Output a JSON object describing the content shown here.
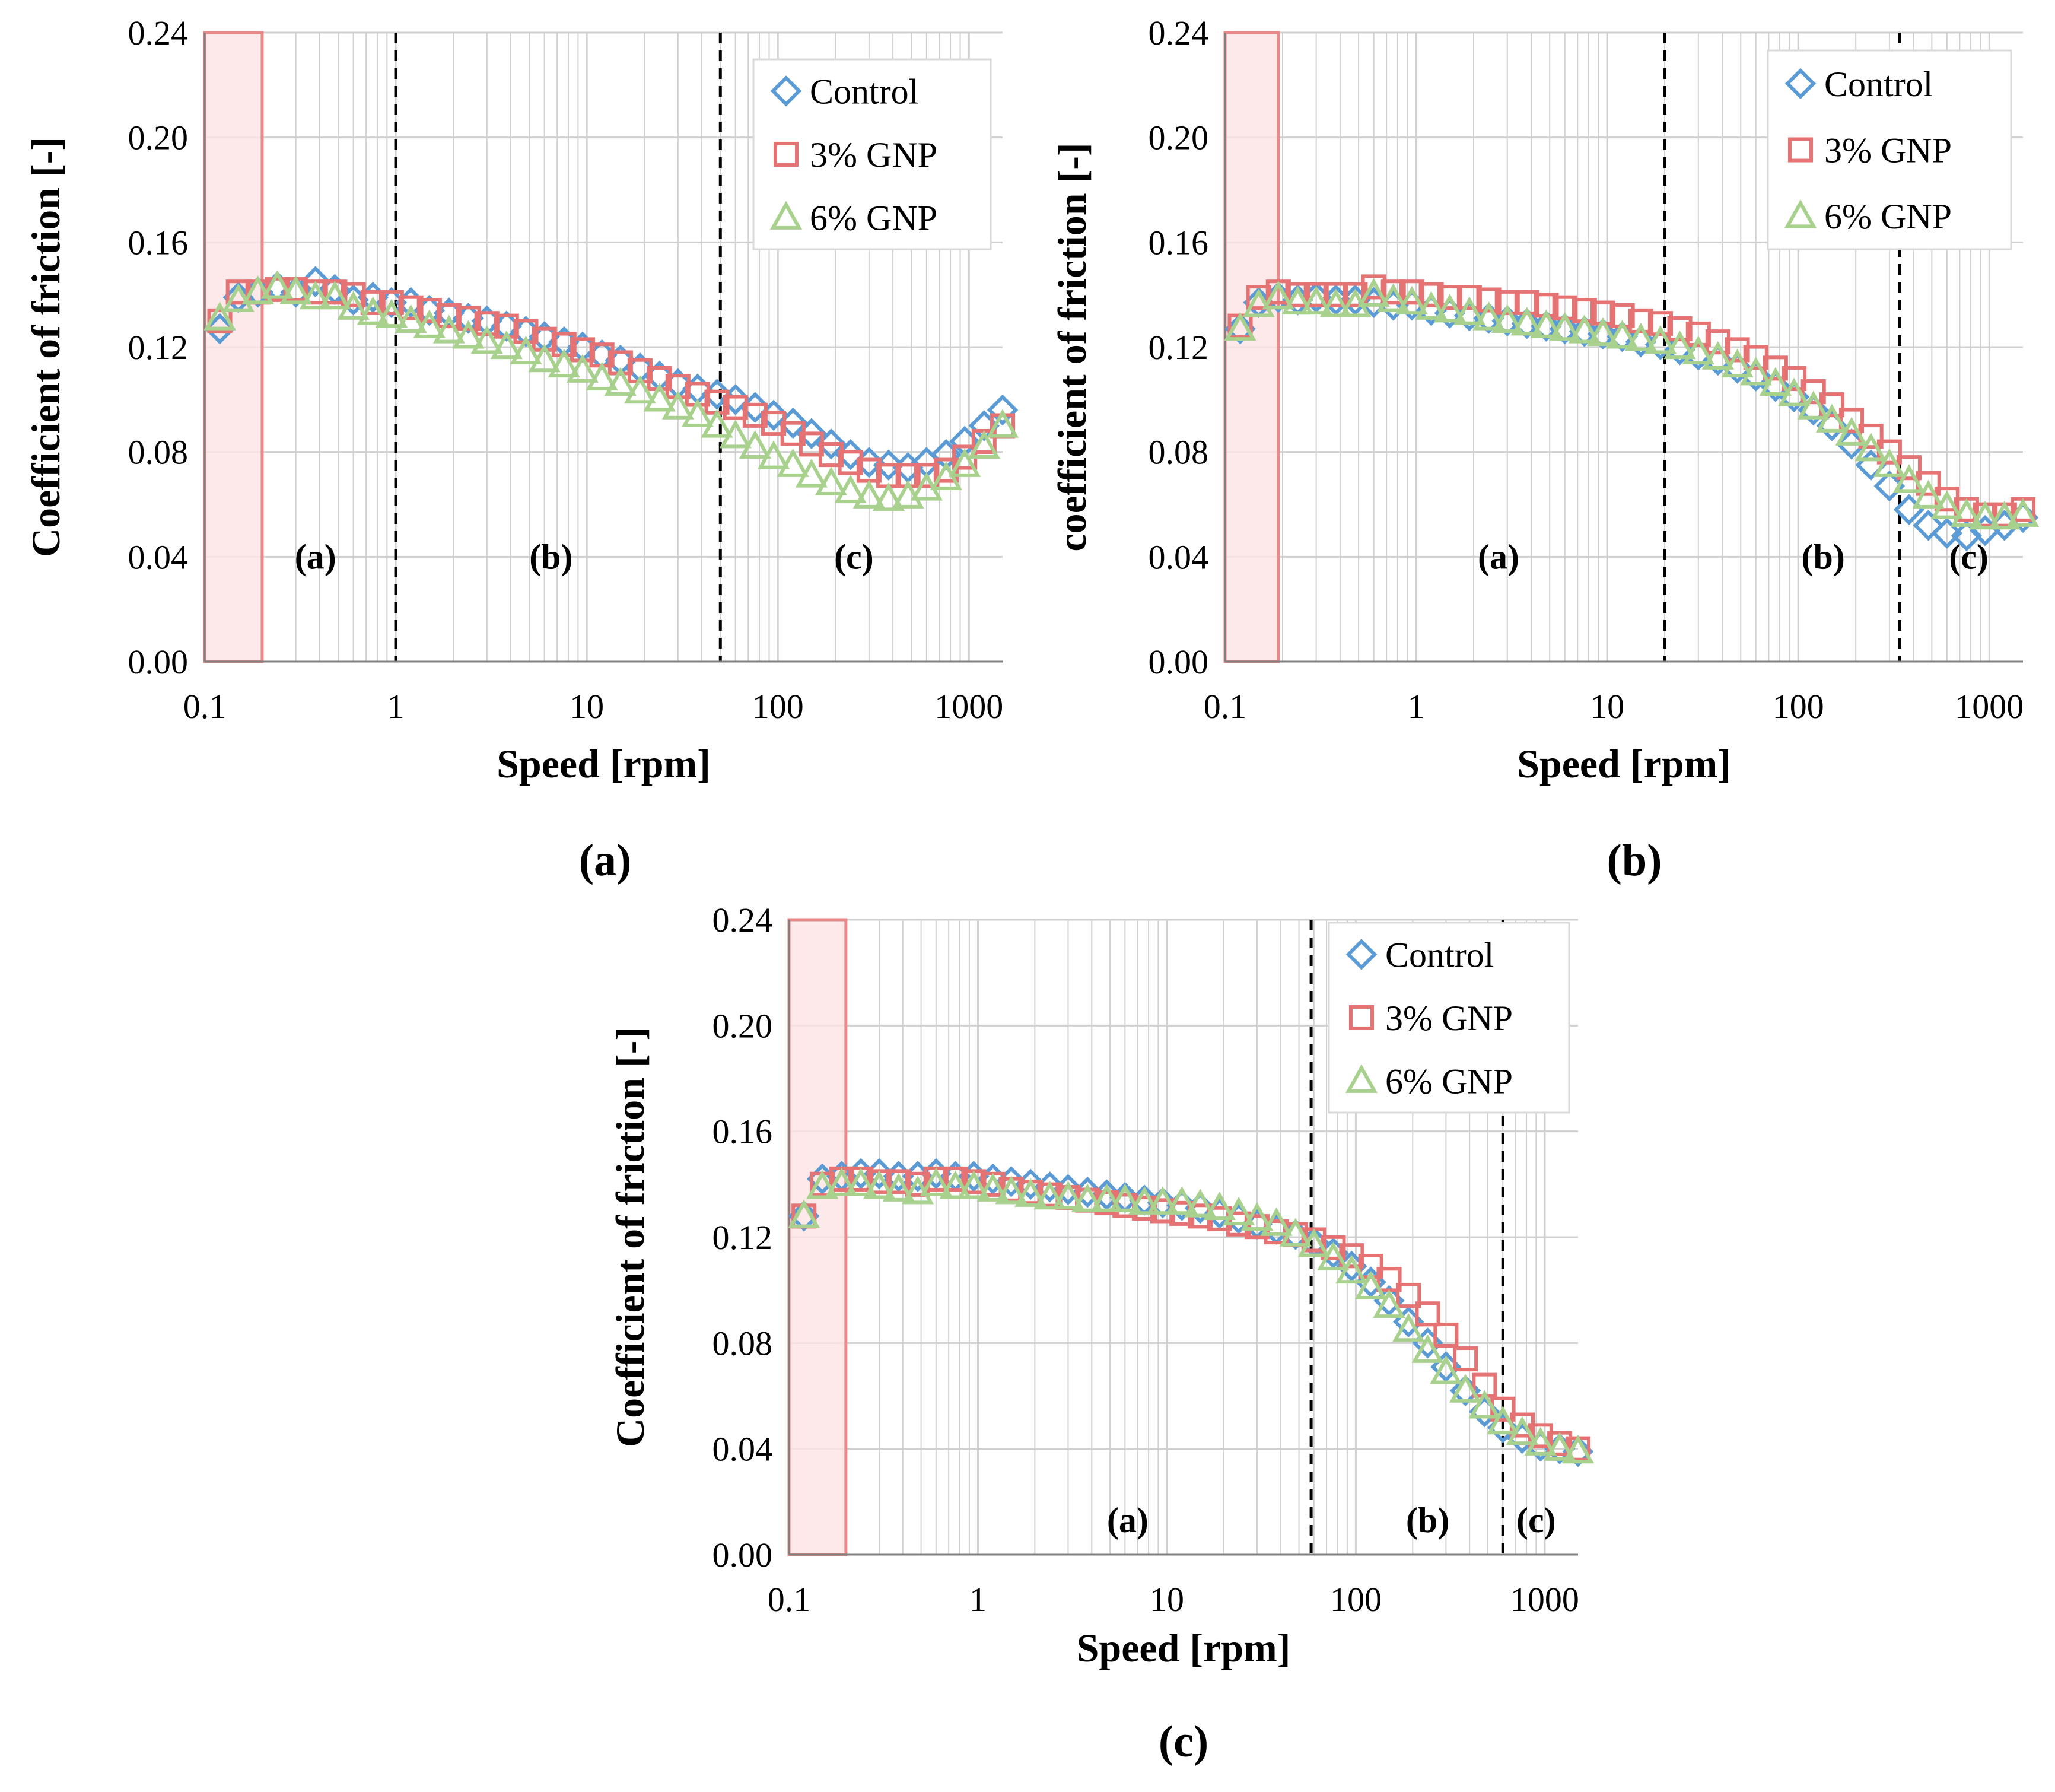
{
  "colors": {
    "control": "#5B9BD5",
    "gnp3": "#E57373",
    "gnp6": "#A9D18E",
    "band_fill": "#FCE4E4",
    "band_stroke": "#E88A8A",
    "grid": "#D0D0D0"
  },
  "legend": [
    "Control",
    "3% GNP",
    "6% GNP"
  ],
  "chart_data": [
    {
      "type": "scatter",
      "caption": "(a)",
      "xlabel": "Speed [rpm]",
      "ylabel": "Coefficient of friction [-]",
      "x_scale": "log",
      "xlim": [
        0.1,
        1500
      ],
      "ylim": [
        0,
        0.24
      ],
      "x_ticks": [
        "0.1",
        "1",
        "10",
        "100",
        "1000"
      ],
      "y_ticks": [
        "0.00",
        "0.04",
        "0.08",
        "0.12",
        "0.16",
        "0.20",
        "0.24"
      ],
      "grid": true,
      "legend_position": "top-right",
      "shaded_band_x": [
        0.1,
        0.2
      ],
      "vlines": [
        1,
        50
      ],
      "region_labels": [
        {
          "text": "(a)",
          "x": 0.38,
          "y": 0.04
        },
        {
          "text": "(b)",
          "x": 6.5,
          "y": 0.04
        },
        {
          "text": "(c)",
          "x": 250,
          "y": 0.04
        }
      ],
      "series": [
        {
          "name": "Control",
          "marker": "diamond",
          "x": [
            0.12,
            0.15,
            0.19,
            0.24,
            0.3,
            0.38,
            0.48,
            0.6,
            0.76,
            0.95,
            1.2,
            1.5,
            1.9,
            2.4,
            3.0,
            3.8,
            4.8,
            6.0,
            7.6,
            9.5,
            12,
            15,
            19,
            24,
            30,
            38,
            48,
            60,
            76,
            95,
            120,
            150,
            190,
            240,
            300,
            380,
            480,
            600,
            760,
            950,
            1200,
            1500
          ],
          "y": [
            0.127,
            0.139,
            0.141,
            0.143,
            0.141,
            0.145,
            0.142,
            0.138,
            0.139,
            0.137,
            0.137,
            0.134,
            0.133,
            0.131,
            0.13,
            0.128,
            0.126,
            0.124,
            0.122,
            0.12,
            0.117,
            0.115,
            0.112,
            0.109,
            0.106,
            0.104,
            0.102,
            0.1,
            0.097,
            0.094,
            0.091,
            0.087,
            0.083,
            0.079,
            0.076,
            0.075,
            0.074,
            0.076,
            0.079,
            0.084,
            0.09,
            0.096
          ]
        },
        {
          "name": "3% GNP",
          "marker": "square",
          "x": [
            0.12,
            0.15,
            0.19,
            0.24,
            0.3,
            0.38,
            0.48,
            0.6,
            0.76,
            0.95,
            1.2,
            1.5,
            1.9,
            2.4,
            3.0,
            3.8,
            4.8,
            6.0,
            7.6,
            9.5,
            12,
            15,
            19,
            24,
            30,
            38,
            48,
            60,
            76,
            95,
            120,
            150,
            190,
            240,
            300,
            380,
            480,
            600,
            760,
            950,
            1200,
            1500
          ],
          "y": [
            0.13,
            0.141,
            0.141,
            0.142,
            0.142,
            0.141,
            0.141,
            0.14,
            0.137,
            0.137,
            0.135,
            0.134,
            0.132,
            0.131,
            0.129,
            0.128,
            0.126,
            0.123,
            0.121,
            0.119,
            0.117,
            0.114,
            0.111,
            0.108,
            0.105,
            0.102,
            0.099,
            0.097,
            0.094,
            0.091,
            0.087,
            0.083,
            0.079,
            0.076,
            0.073,
            0.071,
            0.071,
            0.071,
            0.073,
            0.078,
            0.084,
            0.09
          ]
        },
        {
          "name": "6% GNP",
          "marker": "triangle",
          "x": [
            0.12,
            0.15,
            0.19,
            0.24,
            0.3,
            0.38,
            0.48,
            0.6,
            0.76,
            0.95,
            1.2,
            1.5,
            1.9,
            2.4,
            3.0,
            3.8,
            4.8,
            6.0,
            7.6,
            9.5,
            12,
            15,
            19,
            24,
            30,
            38,
            48,
            60,
            76,
            95,
            120,
            150,
            190,
            240,
            300,
            380,
            480,
            600,
            760,
            950,
            1200,
            1500
          ],
          "y": [
            0.131,
            0.138,
            0.141,
            0.143,
            0.141,
            0.139,
            0.139,
            0.135,
            0.133,
            0.132,
            0.13,
            0.128,
            0.126,
            0.124,
            0.122,
            0.12,
            0.118,
            0.115,
            0.113,
            0.111,
            0.108,
            0.106,
            0.103,
            0.1,
            0.097,
            0.094,
            0.09,
            0.086,
            0.082,
            0.078,
            0.075,
            0.071,
            0.068,
            0.065,
            0.063,
            0.062,
            0.063,
            0.066,
            0.07,
            0.075,
            0.082,
            0.09
          ]
        }
      ]
    },
    {
      "type": "scatter",
      "caption": "(b)",
      "xlabel": "Speed [rpm]",
      "ylabel": "coefficient of friction [-]",
      "x_scale": "log",
      "xlim": [
        0.1,
        1500
      ],
      "ylim": [
        0,
        0.24
      ],
      "x_ticks": [
        "0.1",
        "1",
        "10",
        "100",
        "1000"
      ],
      "y_ticks": [
        "0.00",
        "0.04",
        "0.08",
        "0.12",
        "0.16",
        "0.20",
        "0.24"
      ],
      "grid": true,
      "legend_position": "top-right",
      "shaded_band_x": [
        0.1,
        0.19
      ],
      "vlines": [
        20,
        340
      ],
      "region_labels": [
        {
          "text": "(a)",
          "x": 2.7,
          "y": 0.04
        },
        {
          "text": "(b)",
          "x": 135,
          "y": 0.04
        },
        {
          "text": "(c)",
          "x": 780,
          "y": 0.04
        }
      ],
      "series": [
        {
          "name": "Control",
          "marker": "diamond",
          "x": [
            0.12,
            0.15,
            0.19,
            0.24,
            0.3,
            0.38,
            0.48,
            0.6,
            0.76,
            0.95,
            1.2,
            1.5,
            1.9,
            2.4,
            3.0,
            3.8,
            4.8,
            6.0,
            7.6,
            9.5,
            12,
            15,
            19,
            24,
            30,
            38,
            48,
            60,
            76,
            95,
            120,
            150,
            190,
            240,
            300,
            380,
            480,
            600,
            760,
            950,
            1200,
            1500
          ],
          "y": [
            0.127,
            0.137,
            0.139,
            0.138,
            0.139,
            0.138,
            0.138,
            0.137,
            0.136,
            0.136,
            0.134,
            0.133,
            0.132,
            0.131,
            0.13,
            0.129,
            0.128,
            0.127,
            0.126,
            0.125,
            0.124,
            0.122,
            0.121,
            0.119,
            0.117,
            0.115,
            0.112,
            0.109,
            0.105,
            0.101,
            0.096,
            0.09,
            0.083,
            0.075,
            0.067,
            0.058,
            0.052,
            0.049,
            0.048,
            0.05,
            0.052,
            0.055
          ]
        },
        {
          "name": "3% GNP",
          "marker": "square",
          "x": [
            0.12,
            0.15,
            0.19,
            0.24,
            0.3,
            0.38,
            0.48,
            0.6,
            0.76,
            0.95,
            1.2,
            1.5,
            1.9,
            2.4,
            3.0,
            3.8,
            4.8,
            6.0,
            7.6,
            9.5,
            12,
            15,
            19,
            24,
            30,
            38,
            48,
            60,
            76,
            95,
            120,
            150,
            190,
            240,
            300,
            380,
            480,
            600,
            760,
            950,
            1200,
            1500
          ],
          "y": [
            0.128,
            0.139,
            0.141,
            0.14,
            0.14,
            0.14,
            0.14,
            0.143,
            0.141,
            0.141,
            0.14,
            0.139,
            0.139,
            0.138,
            0.137,
            0.137,
            0.136,
            0.135,
            0.134,
            0.133,
            0.132,
            0.13,
            0.129,
            0.127,
            0.125,
            0.122,
            0.119,
            0.116,
            0.112,
            0.108,
            0.103,
            0.098,
            0.092,
            0.086,
            0.08,
            0.074,
            0.068,
            0.062,
            0.058,
            0.056,
            0.056,
            0.058
          ]
        },
        {
          "name": "6% GNP",
          "marker": "triangle",
          "x": [
            0.12,
            0.15,
            0.19,
            0.24,
            0.3,
            0.38,
            0.48,
            0.6,
            0.76,
            0.95,
            1.2,
            1.5,
            1.9,
            2.4,
            3.0,
            3.8,
            4.8,
            6.0,
            7.6,
            9.5,
            12,
            15,
            19,
            24,
            30,
            38,
            48,
            60,
            76,
            95,
            120,
            150,
            190,
            240,
            300,
            380,
            480,
            600,
            760,
            950,
            1200,
            1500
          ],
          "y": [
            0.127,
            0.136,
            0.139,
            0.137,
            0.137,
            0.136,
            0.136,
            0.14,
            0.138,
            0.137,
            0.135,
            0.134,
            0.133,
            0.131,
            0.13,
            0.129,
            0.128,
            0.127,
            0.126,
            0.125,
            0.124,
            0.123,
            0.122,
            0.12,
            0.118,
            0.116,
            0.113,
            0.11,
            0.106,
            0.102,
            0.097,
            0.092,
            0.087,
            0.081,
            0.075,
            0.069,
            0.063,
            0.059,
            0.056,
            0.055,
            0.055,
            0.056
          ]
        }
      ]
    },
    {
      "type": "scatter",
      "caption": "(c)",
      "xlabel": "Speed [rpm]",
      "ylabel": "Coefficient of friction [-]",
      "x_scale": "log",
      "xlim": [
        0.1,
        1500
      ],
      "ylim": [
        0,
        0.24
      ],
      "x_ticks": [
        "0.1",
        "1",
        "10",
        "100",
        "1000"
      ],
      "y_ticks": [
        "0.00",
        "0.04",
        "0.08",
        "0.12",
        "0.16",
        "0.20",
        "0.24"
      ],
      "grid": true,
      "legend_position": "top-right",
      "shaded_band_x": [
        0.1,
        0.2
      ],
      "vlines": [
        58,
        600
      ],
      "region_labels": [
        {
          "text": "(a)",
          "x": 6.2,
          "y": 0.013
        },
        {
          "text": "(b)",
          "x": 240,
          "y": 0.013
        },
        {
          "text": "(c)",
          "x": 900,
          "y": 0.013
        }
      ],
      "series": [
        {
          "name": "Control",
          "marker": "diamond",
          "x": [
            0.12,
            0.15,
            0.19,
            0.24,
            0.3,
            0.38,
            0.48,
            0.6,
            0.76,
            0.95,
            1.2,
            1.5,
            1.9,
            2.4,
            3.0,
            3.8,
            4.8,
            6.0,
            7.6,
            9.5,
            12,
            15,
            19,
            24,
            30,
            38,
            48,
            60,
            76,
            95,
            120,
            150,
            190,
            240,
            300,
            380,
            480,
            600,
            760,
            950,
            1200,
            1500
          ],
          "y": [
            0.128,
            0.142,
            0.143,
            0.144,
            0.144,
            0.143,
            0.143,
            0.144,
            0.143,
            0.143,
            0.142,
            0.141,
            0.14,
            0.139,
            0.138,
            0.137,
            0.136,
            0.135,
            0.134,
            0.133,
            0.132,
            0.131,
            0.129,
            0.127,
            0.125,
            0.123,
            0.121,
            0.118,
            0.114,
            0.109,
            0.103,
            0.096,
            0.088,
            0.08,
            0.071,
            0.062,
            0.054,
            0.048,
            0.044,
            0.041,
            0.04,
            0.039
          ]
        },
        {
          "name": "3% GNP",
          "marker": "square",
          "x": [
            0.12,
            0.15,
            0.19,
            0.24,
            0.3,
            0.38,
            0.48,
            0.6,
            0.76,
            0.95,
            1.2,
            1.5,
            1.9,
            2.4,
            3.0,
            3.8,
            4.8,
            6.0,
            7.6,
            9.5,
            12,
            15,
            19,
            24,
            30,
            38,
            48,
            60,
            76,
            95,
            120,
            150,
            190,
            240,
            300,
            380,
            480,
            600,
            760,
            950,
            1200,
            1500
          ],
          "y": [
            0.128,
            0.14,
            0.142,
            0.142,
            0.141,
            0.141,
            0.14,
            0.142,
            0.142,
            0.141,
            0.14,
            0.138,
            0.137,
            0.136,
            0.135,
            0.134,
            0.133,
            0.132,
            0.131,
            0.13,
            0.129,
            0.128,
            0.127,
            0.125,
            0.124,
            0.122,
            0.121,
            0.119,
            0.116,
            0.113,
            0.109,
            0.104,
            0.098,
            0.091,
            0.083,
            0.074,
            0.064,
            0.055,
            0.049,
            0.045,
            0.042,
            0.04
          ]
        },
        {
          "name": "6% GNP",
          "marker": "triangle",
          "x": [
            0.12,
            0.15,
            0.19,
            0.24,
            0.3,
            0.38,
            0.48,
            0.6,
            0.76,
            0.95,
            1.2,
            1.5,
            1.9,
            2.4,
            3.0,
            3.8,
            4.8,
            6.0,
            7.6,
            9.5,
            12,
            15,
            19,
            24,
            30,
            38,
            48,
            60,
            76,
            95,
            120,
            150,
            190,
            240,
            300,
            380,
            480,
            600,
            760,
            950,
            1200,
            1500
          ],
          "y": [
            0.128,
            0.139,
            0.14,
            0.14,
            0.139,
            0.138,
            0.137,
            0.14,
            0.139,
            0.139,
            0.138,
            0.137,
            0.136,
            0.135,
            0.135,
            0.134,
            0.134,
            0.134,
            0.133,
            0.133,
            0.133,
            0.132,
            0.131,
            0.129,
            0.127,
            0.125,
            0.121,
            0.117,
            0.112,
            0.107,
            0.101,
            0.094,
            0.085,
            0.077,
            0.069,
            0.062,
            0.056,
            0.05,
            0.046,
            0.042,
            0.04,
            0.039
          ]
        }
      ]
    }
  ]
}
